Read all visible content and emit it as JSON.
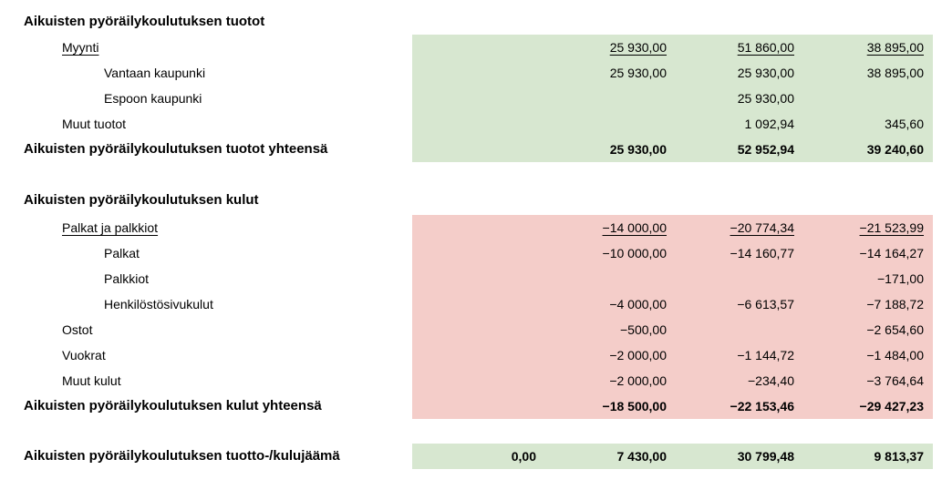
{
  "report": {
    "colors": {
      "revenue_band": "#d7e7d0",
      "expense_band": "#f4cdc9",
      "summary_band": "#d7e7d0",
      "text": "#000000",
      "background": "#ffffff"
    },
    "sections": [
      {
        "header": "Aikuisten pyöräilykoulutuksen tuotot",
        "rows": [
          {
            "label": "Myynti",
            "values": [
              "",
              "25 930,00",
              "51 860,00",
              "38 895,00"
            ]
          },
          {
            "label": "Vantaan kaupunki",
            "values": [
              "",
              "25 930,00",
              "25 930,00",
              "38 895,00"
            ]
          },
          {
            "label": "Espoon kaupunki",
            "values": [
              "",
              "",
              "25 930,00",
              ""
            ]
          },
          {
            "label": "Muut tuotot",
            "values": [
              "",
              "",
              "1 092,94",
              "345,60"
            ]
          },
          {
            "label": "Aikuisten pyöräilykoulutuksen tuotot yhteensä",
            "values": [
              "",
              "25 930,00",
              "52 952,94",
              "39 240,60"
            ]
          }
        ]
      },
      {
        "header": "Aikuisten pyöräilykoulutuksen kulut",
        "rows": [
          {
            "label": "Palkat ja palkkiot",
            "values": [
              "",
              "−14 000,00",
              "−20 774,34",
              "−21 523,99"
            ]
          },
          {
            "label": "Palkat",
            "values": [
              "",
              "−10 000,00",
              "−14 160,77",
              "−14 164,27"
            ]
          },
          {
            "label": "Palkkiot",
            "values": [
              "",
              "",
              "",
              "−171,00"
            ]
          },
          {
            "label": "Henkilöstösivukulut",
            "values": [
              "",
              "−4 000,00",
              "−6 613,57",
              "−7 188,72"
            ]
          },
          {
            "label": "Ostot",
            "values": [
              "",
              "−500,00",
              "",
              "−2 654,60"
            ]
          },
          {
            "label": "Vuokrat",
            "values": [
              "",
              "−2 000,00",
              "−1 144,72",
              "−1 484,00"
            ]
          },
          {
            "label": "Muut kulut",
            "values": [
              "",
              "−2 000,00",
              "−234,40",
              "−3 764,64"
            ]
          },
          {
            "label": "Aikuisten pyöräilykoulutuksen kulut yhteensä",
            "values": [
              "",
              "−18 500,00",
              "−22 153,46",
              "−29 427,23"
            ]
          }
        ]
      }
    ],
    "summary_row": {
      "label": "Aikuisten pyöräilykoulutuksen tuotto-/kulujäämä",
      "values": [
        "0,00",
        "7 430,00",
        "30 799,48",
        "9 813,37"
      ]
    }
  }
}
